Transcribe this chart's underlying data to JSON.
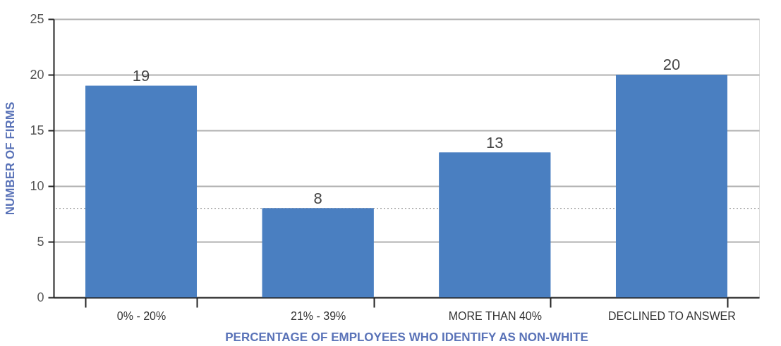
{
  "chart_data": {
    "type": "bar",
    "categories": [
      "0% - 20%",
      "21% - 39%",
      "MORE THAN 40%",
      "DECLINED TO ANSWER"
    ],
    "values": [
      19,
      8,
      13,
      20
    ],
    "color": "#4a7fc1",
    "xlabel": "PERCENTAGE OF EMPLOYEES WHO IDENTIFY AS NON-WHITE",
    "ylabel": "NUMBER OF FIRMS",
    "ylim": [
      0,
      25
    ],
    "yticks": [
      0,
      5,
      10,
      15,
      20,
      25
    ],
    "grid": "y",
    "data_labels": true,
    "ref_lines": [
      {
        "axis": "y",
        "value": 8,
        "color": "#999999",
        "line_style": "dotted"
      }
    ]
  }
}
